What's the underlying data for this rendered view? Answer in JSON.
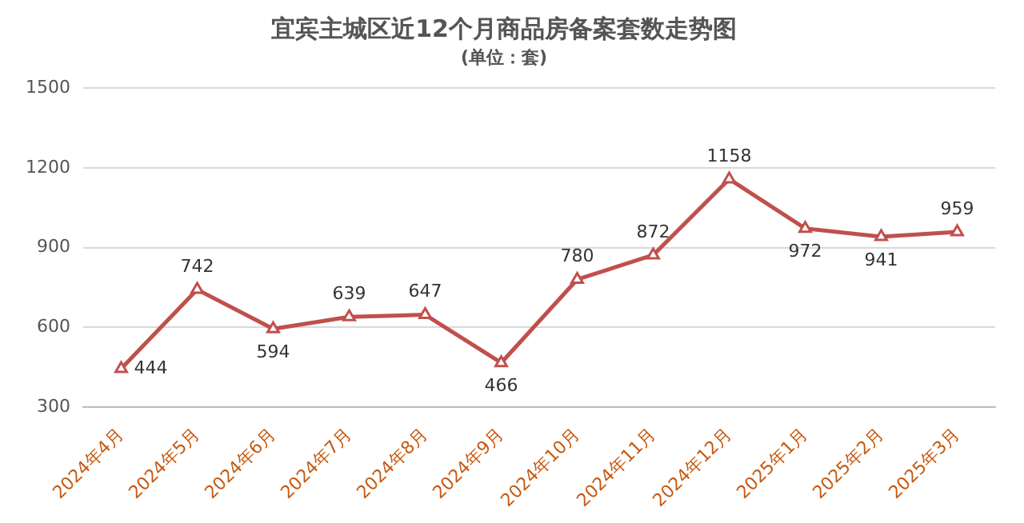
{
  "chart_data": {
    "type": "line",
    "title": "宜宾主城区近12个月商品房备案套数走势图",
    "subtitle": "(单位：套)",
    "categories": [
      "2024年4月",
      "2024年5月",
      "2024年6月",
      "2024年7月",
      "2024年8月",
      "2024年9月",
      "2024年10月",
      "2024年11月",
      "2024年12月",
      "2025年1月",
      "2025年2月",
      "2025年3月"
    ],
    "series": [
      {
        "color": "#c0504d",
        "values": [
          444,
          742,
          594,
          639,
          647,
          466,
          780,
          872,
          1158,
          972,
          941,
          959
        ]
      }
    ],
    "ylim": [
      300,
      1500
    ],
    "yticks": [
      300,
      600,
      900,
      1200,
      1500
    ],
    "grid": "y",
    "legend": false,
    "marker": "triangle",
    "line_style": "solid",
    "data_labels": true
  }
}
